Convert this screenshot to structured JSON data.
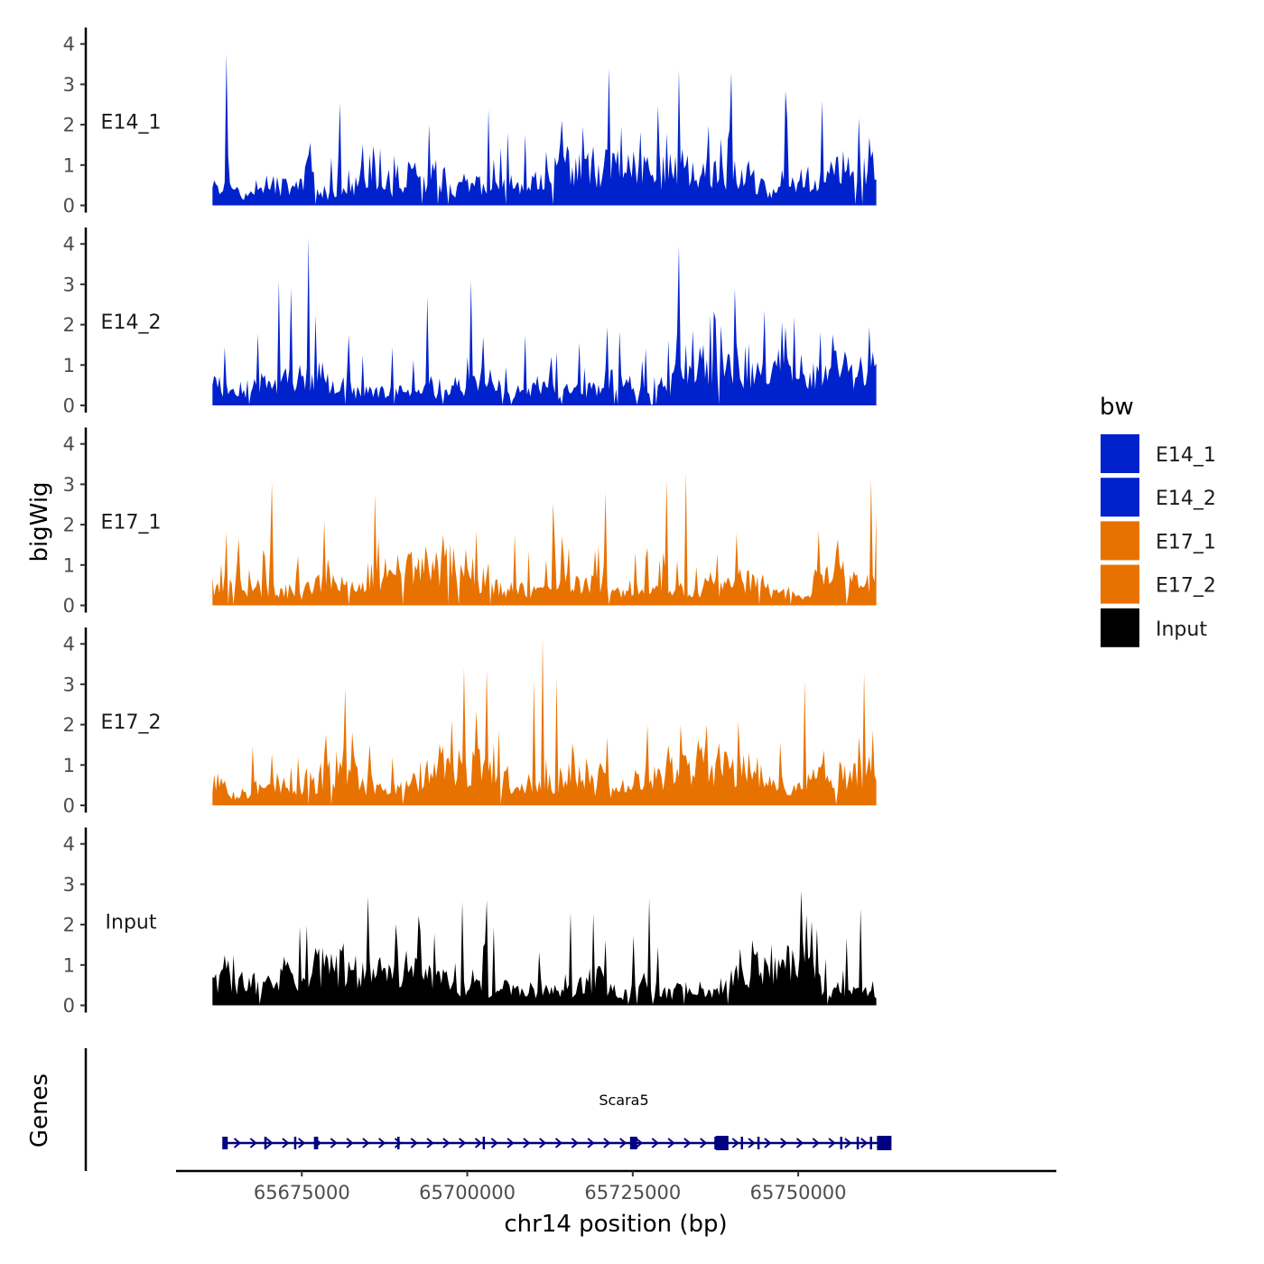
{
  "chart_data": {
    "type": "area",
    "chromosome": "chr14",
    "x_range_bp": [
      65656000,
      65789000
    ],
    "signal_x_range_bp": [
      65661500,
      65761800
    ],
    "x_ticks": [
      65675000,
      65700000,
      65725000,
      65750000
    ],
    "x_tick_labels": [
      "65675000",
      "65700000",
      "65725000",
      "65750000"
    ],
    "xlabel": "chr14 position (bp)",
    "ylabel": "bigWig",
    "ylim": [
      0,
      4.4
    ],
    "y_ticks": [
      0,
      1,
      2,
      3,
      4
    ],
    "y_tick_labels": [
      "0",
      "1",
      "2",
      "3",
      "4"
    ],
    "legend": {
      "title": "bw",
      "position": "right",
      "entries": [
        {
          "label": "E14_1",
          "color": "#0022CC"
        },
        {
          "label": "E14_2",
          "color": "#0022CC"
        },
        {
          "label": "E17_1",
          "color": "#E87200"
        },
        {
          "label": "E17_2",
          "color": "#E87200"
        },
        {
          "label": "Input",
          "color": "#000000"
        }
      ]
    },
    "series": [
      {
        "name": "E14_1",
        "color": "#0022CC",
        "max": 3.8,
        "seed": 11,
        "peaks": [
          [
            65663500,
            3.75
          ],
          [
            65721500,
            3.4
          ],
          [
            65732000,
            3.35
          ],
          [
            65740000,
            3.3
          ],
          [
            65748000,
            2.85
          ],
          [
            65753500,
            2.6
          ]
        ]
      },
      {
        "name": "E14_2",
        "color": "#0022CC",
        "max": 4.2,
        "seed": 23,
        "peaks": [
          [
            65676000,
            4.15
          ],
          [
            65671500,
            3.1
          ],
          [
            65732000,
            3.95
          ],
          [
            65700500,
            3.1
          ],
          [
            65694000,
            2.7
          ],
          [
            65740500,
            2.9
          ],
          [
            65673500,
            2.9
          ]
        ]
      },
      {
        "name": "E17_1",
        "color": "#E87200",
        "max": 3.3,
        "seed": 37,
        "peaks": [
          [
            65733000,
            3.3
          ],
          [
            65730000,
            3.1
          ],
          [
            65761000,
            3.15
          ],
          [
            65670500,
            3.05
          ],
          [
            65686000,
            2.75
          ],
          [
            65721000,
            2.8
          ]
        ]
      },
      {
        "name": "E17_2",
        "color": "#E87200",
        "max": 4.2,
        "seed": 53,
        "peaks": [
          [
            65711500,
            4.15
          ],
          [
            65699500,
            3.4
          ],
          [
            65710000,
            3.1
          ],
          [
            65703000,
            3.35
          ],
          [
            65760000,
            3.3
          ],
          [
            65713500,
            3.15
          ],
          [
            65751000,
            3.1
          ],
          [
            65681500,
            2.9
          ]
        ]
      },
      {
        "name": "Input",
        "color": "#000000",
        "max": 2.9,
        "seed": 71,
        "peaks": [
          [
            65685000,
            2.7
          ],
          [
            65750500,
            2.85
          ],
          [
            65727500,
            2.65
          ],
          [
            65759500,
            2.4
          ],
          [
            65715500,
            2.3
          ],
          [
            65703000,
            2.6
          ]
        ]
      }
    ],
    "gene_track": {
      "label": "Genes",
      "gene_name": "Scara5",
      "strand": "+",
      "start": 65663300,
      "end": 65763200,
      "color": "#000080",
      "exons": [
        65663400,
        65669500,
        65674000,
        65677000,
        65677300,
        65689600,
        65702500,
        65725000,
        65725500,
        65737500,
        65738500,
        65741500,
        65744000,
        65756500,
        65759000,
        65761000,
        65763000
      ]
    }
  }
}
